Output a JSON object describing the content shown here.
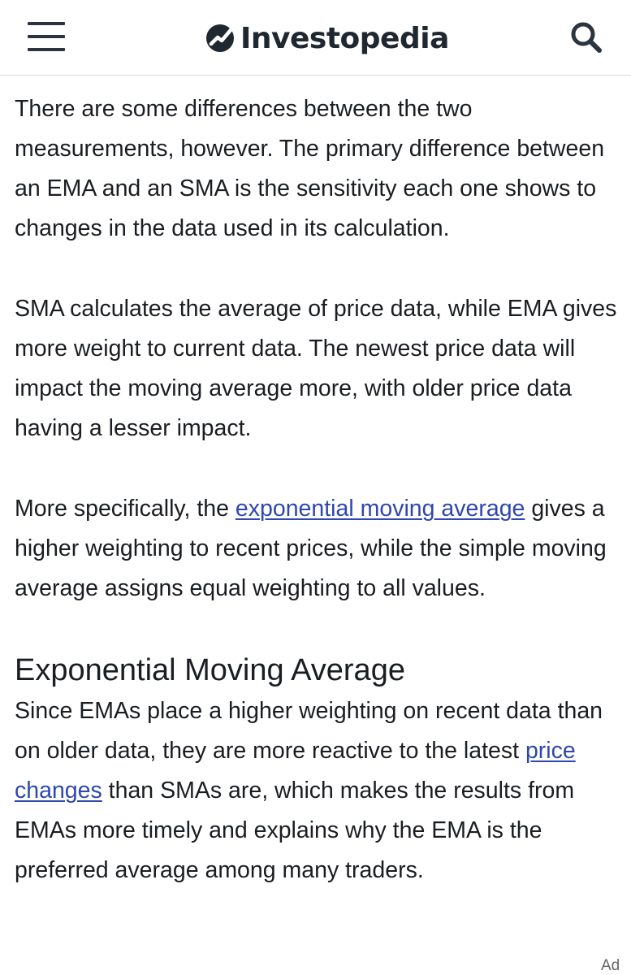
{
  "header": {
    "brand": "Investopedia",
    "menu_icon": "hamburger-menu-icon",
    "logo_icon": "investopedia-logo-icon",
    "search_icon": "search-icon",
    "brand_color": "#1f2730"
  },
  "article": {
    "para1": "There are some differences between the two measurements, however. The primary difference between an EMA and an SMA is the sensitivity each one shows to changes in the data used in its calculation.",
    "para2": "SMA calculates the average of price data, while EMA gives more weight to current data. The newest price data will impact the moving average more, with older price data having a lesser impact.",
    "para3": {
      "before": "More specifically, the ",
      "link": "exponential moving average",
      "after": " gives a higher weighting to recent prices, while the simple moving average assigns equal weighting to all values."
    },
    "section_heading": "Exponential Moving Average",
    "para4": {
      "before": "Since EMAs place a higher weighting on recent data than on older data, they are more reactive to the latest ",
      "link": "price changes",
      "after": " than SMAs are, which makes the results from EMAs more timely and explains why the EMA is the preferred average among many traders."
    },
    "link_color": "#2f47b0"
  },
  "ad": {
    "label": "Ad"
  }
}
